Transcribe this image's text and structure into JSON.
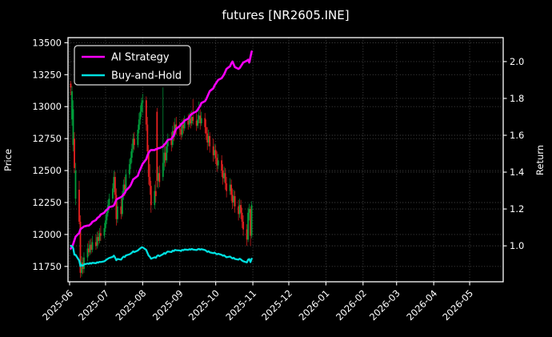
{
  "title": "futures [NR2605.INE]",
  "legend": {
    "items": [
      {
        "label": "AI Strategy",
        "color": "#fb00fb"
      },
      {
        "label": "Buy-and-Hold",
        "color": "#00e0e0"
      }
    ]
  },
  "axes": {
    "price_label": "Price",
    "return_label": "Return",
    "price_ticks": [
      13500,
      13250,
      13000,
      12750,
      12500,
      12250,
      12000,
      11750
    ],
    "return_ticks": [
      2.0,
      1.8,
      1.6,
      1.4,
      1.2,
      1.0
    ],
    "x_ticks": [
      "2025-06",
      "2025-07",
      "2025-08",
      "2025-09",
      "2025-10",
      "2025-11",
      "2025-12",
      "2026-01",
      "2026-02",
      "2026-03",
      "2026-04",
      "2026-05"
    ],
    "price_range": [
      11630,
      13540
    ],
    "return_range": [
      0.805,
      2.13
    ],
    "grid_color": "#5a5a5a",
    "spine_color": "#ffffff",
    "text_color": "#ffffff",
    "background": "#000000"
  },
  "chart_data": {
    "type": "candlestick+line",
    "title": "futures [NR2605.INE]",
    "ylabel_left": "Price",
    "ylabel_right": "Return",
    "up_color": "#00a03c",
    "down_color": "#e82020",
    "candles_format": [
      "date",
      "open",
      "high",
      "low",
      "close"
    ],
    "candles": [
      [
        "2025-06-02",
        13180,
        13200,
        13090,
        13150
      ],
      [
        "2025-06-03",
        12900,
        13160,
        12850,
        13120
      ],
      [
        "2025-06-04",
        12700,
        13050,
        12650,
        12980
      ],
      [
        "2025-06-05",
        12750,
        12800,
        12480,
        12520
      ],
      [
        "2025-06-06",
        12280,
        12560,
        12230,
        12500
      ],
      [
        "2025-06-09",
        12350,
        12420,
        12080,
        12100
      ],
      [
        "2025-06-10",
        12100,
        12150,
        11660,
        11700
      ],
      [
        "2025-06-11",
        11700,
        11830,
        11670,
        11780
      ],
      [
        "2025-06-12",
        11780,
        11820,
        11690,
        11730
      ],
      [
        "2025-06-13",
        11730,
        11860,
        11700,
        11820
      ],
      [
        "2025-06-16",
        11820,
        11930,
        11790,
        11890
      ],
      [
        "2025-06-17",
        11890,
        11950,
        11830,
        11860
      ],
      [
        "2025-06-18",
        11860,
        11960,
        11840,
        11920
      ],
      [
        "2025-06-19",
        11920,
        11970,
        11850,
        11880
      ],
      [
        "2025-06-20",
        11880,
        11990,
        11860,
        11940
      ],
      [
        "2025-06-23",
        11940,
        12000,
        11880,
        11910
      ],
      [
        "2025-06-24",
        11910,
        12020,
        11890,
        11980
      ],
      [
        "2025-06-25",
        11980,
        12030,
        11920,
        11950
      ],
      [
        "2025-06-26",
        11950,
        12050,
        11930,
        12010
      ],
      [
        "2025-06-27",
        12010,
        12070,
        11950,
        11990
      ],
      [
        "2025-06-30",
        11990,
        12090,
        11970,
        12050
      ],
      [
        "2025-07-01",
        12050,
        12150,
        12020,
        12110
      ],
      [
        "2025-07-02",
        12110,
        12210,
        12080,
        12170
      ],
      [
        "2025-07-03",
        12170,
        12270,
        12140,
        12230
      ],
      [
        "2025-07-04",
        12230,
        12320,
        12190,
        12280
      ],
      [
        "2025-07-07",
        12280,
        12400,
        12250,
        12360
      ],
      [
        "2025-07-08",
        12360,
        12500,
        12330,
        12450
      ],
      [
        "2025-07-09",
        12450,
        12490,
        12270,
        12310
      ],
      [
        "2025-07-10",
        12310,
        12360,
        12070,
        12120
      ],
      [
        "2025-07-11",
        12120,
        12260,
        12090,
        12220
      ],
      [
        "2025-07-14",
        12220,
        12280,
        12120,
        12160
      ],
      [
        "2025-07-15",
        12160,
        12340,
        12140,
        12300
      ],
      [
        "2025-07-16",
        12300,
        12430,
        12270,
        12390
      ],
      [
        "2025-07-17",
        12390,
        12450,
        12300,
        12350
      ],
      [
        "2025-07-18",
        12350,
        12510,
        12330,
        12470
      ],
      [
        "2025-07-21",
        12470,
        12590,
        12440,
        12550
      ],
      [
        "2025-07-22",
        12550,
        12650,
        12510,
        12600
      ],
      [
        "2025-07-23",
        12600,
        12710,
        12560,
        12670
      ],
      [
        "2025-07-24",
        12670,
        12790,
        12640,
        12750
      ],
      [
        "2025-07-25",
        12750,
        12800,
        12660,
        12700
      ],
      [
        "2025-07-28",
        12700,
        12860,
        12680,
        12820
      ],
      [
        "2025-07-29",
        12820,
        12950,
        12790,
        12900
      ],
      [
        "2025-07-30",
        12900,
        13010,
        12860,
        12960
      ],
      [
        "2025-07-31",
        12960,
        13070,
        12920,
        13030
      ],
      [
        "2025-08-01",
        13030,
        13100,
        12950,
        13050
      ],
      [
        "2025-08-04",
        13050,
        13080,
        12810,
        12860
      ],
      [
        "2025-08-05",
        12860,
        12920,
        12590,
        12650
      ],
      [
        "2025-08-06",
        12650,
        12700,
        12390,
        12450
      ],
      [
        "2025-08-07",
        12450,
        12550,
        12310,
        12380
      ],
      [
        "2025-08-08",
        12380,
        12420,
        12170,
        12230
      ],
      [
        "2025-08-11",
        12230,
        12390,
        12200,
        12340
      ],
      [
        "2025-08-12",
        12340,
        12420,
        12250,
        12300
      ],
      [
        "2025-08-13",
        12960,
        12990,
        12370,
        12420
      ],
      [
        "2025-08-14",
        12420,
        12530,
        12360,
        12480
      ],
      [
        "2025-08-15",
        12480,
        12540,
        12370,
        12410
      ],
      [
        "2025-08-18",
        12450,
        13150,
        12420,
        12560
      ],
      [
        "2025-08-19",
        12560,
        12690,
        12500,
        12640
      ],
      [
        "2025-08-20",
        12640,
        12700,
        12530,
        12580
      ],
      [
        "2025-08-21",
        12580,
        12730,
        12560,
        12690
      ],
      [
        "2025-08-22",
        12690,
        12790,
        12640,
        12740
      ],
      [
        "2025-08-25",
        12740,
        12800,
        12650,
        12700
      ],
      [
        "2025-08-26",
        12700,
        12850,
        12680,
        12810
      ],
      [
        "2025-08-27",
        12810,
        12880,
        12730,
        12780
      ],
      [
        "2025-08-28",
        12780,
        12910,
        12760,
        12860
      ],
      [
        "2025-08-29",
        12860,
        12920,
        12780,
        12830
      ],
      [
        "2025-09-01",
        12830,
        12880,
        12770,
        12820
      ],
      [
        "2025-09-02",
        12820,
        12870,
        12740,
        12780
      ],
      [
        "2025-09-03",
        12780,
        12900,
        12760,
        12860
      ],
      [
        "2025-09-04",
        12860,
        12910,
        12790,
        12830
      ],
      [
        "2025-09-05",
        12830,
        12930,
        12810,
        12890
      ],
      [
        "2025-09-08",
        12890,
        12940,
        12820,
        12860
      ],
      [
        "2025-09-09",
        12860,
        12950,
        12840,
        12910
      ],
      [
        "2025-09-10",
        12910,
        12960,
        12830,
        12870
      ],
      [
        "2025-09-11",
        12870,
        12970,
        12850,
        12920
      ],
      [
        "2025-09-12",
        12920,
        13060,
        12860,
        12890
      ],
      [
        "2025-09-15",
        12890,
        12950,
        12810,
        12850
      ],
      [
        "2025-09-16",
        12850,
        12940,
        12830,
        12900
      ],
      [
        "2025-09-17",
        12900,
        13040,
        12870,
        12930
      ],
      [
        "2025-09-18",
        12930,
        12980,
        12820,
        12870
      ],
      [
        "2025-09-19",
        12870,
        12960,
        12850,
        12910
      ],
      [
        "2025-09-22",
        12910,
        12950,
        12790,
        12840
      ],
      [
        "2025-09-23",
        12840,
        12900,
        12740,
        12790
      ],
      [
        "2025-09-24",
        12790,
        12840,
        12660,
        12720
      ],
      [
        "2025-09-25",
        12720,
        12820,
        12690,
        12770
      ],
      [
        "2025-09-26",
        12770,
        12800,
        12640,
        12690
      ],
      [
        "2025-09-29",
        12690,
        12750,
        12570,
        12620
      ],
      [
        "2025-09-30",
        12620,
        12710,
        12590,
        12660
      ],
      [
        "2025-10-01",
        12660,
        12700,
        12550,
        12600
      ],
      [
        "2025-10-02",
        12600,
        12650,
        12490,
        12540
      ],
      [
        "2025-10-03",
        12540,
        12630,
        12510,
        12580
      ],
      [
        "2025-10-06",
        12580,
        12620,
        12450,
        12500
      ],
      [
        "2025-10-07",
        12500,
        12550,
        12390,
        12440
      ],
      [
        "2025-10-08",
        12440,
        12530,
        12410,
        12480
      ],
      [
        "2025-10-09",
        12480,
        12520,
        12350,
        12400
      ],
      [
        "2025-10-10",
        12400,
        12450,
        12290,
        12340
      ],
      [
        "2025-10-13",
        12340,
        12440,
        12310,
        12390
      ],
      [
        "2025-10-14",
        12390,
        12430,
        12260,
        12310
      ],
      [
        "2025-10-15",
        12310,
        12360,
        12200,
        12250
      ],
      [
        "2025-10-16",
        12250,
        12350,
        12220,
        12300
      ],
      [
        "2025-10-17",
        12300,
        12340,
        12170,
        12220
      ],
      [
        "2025-10-20",
        12220,
        12270,
        12110,
        12160
      ],
      [
        "2025-10-21",
        12160,
        12280,
        12130,
        12230
      ],
      [
        "2025-10-22",
        12230,
        12270,
        12120,
        12170
      ],
      [
        "2025-10-23",
        12170,
        12210,
        12050,
        12100
      ],
      [
        "2025-10-24",
        12100,
        12150,
        11990,
        12040
      ],
      [
        "2025-10-27",
        12040,
        12080,
        11910,
        11960
      ],
      [
        "2025-10-28",
        11960,
        12210,
        11940,
        12170
      ],
      [
        "2025-10-29",
        12170,
        12240,
        12110,
        12200
      ],
      [
        "2025-10-30",
        12200,
        12220,
        11910,
        11990
      ],
      [
        "2025-10-31",
        11990,
        12260,
        11970,
        12230
      ]
    ],
    "series": [
      {
        "name": "AI Strategy",
        "axis": "return",
        "color": "#fb00fb",
        "values": [
          0.985,
          0.995,
          1.01,
          1.03,
          1.05,
          1.07,
          1.09,
          1.095,
          1.1,
          1.105,
          1.11,
          1.11,
          1.115,
          1.12,
          1.13,
          1.14,
          1.15,
          1.155,
          1.16,
          1.17,
          1.18,
          1.19,
          1.195,
          1.2,
          1.21,
          1.215,
          1.22,
          1.235,
          1.25,
          1.255,
          1.265,
          1.27,
          1.28,
          1.285,
          1.3,
          1.32,
          1.33,
          1.345,
          1.36,
          1.365,
          1.38,
          1.4,
          1.415,
          1.43,
          1.445,
          1.47,
          1.49,
          1.505,
          1.515,
          1.52,
          1.52,
          1.525,
          1.525,
          1.53,
          1.53,
          1.54,
          1.55,
          1.555,
          1.565,
          1.575,
          1.58,
          1.59,
          1.6,
          1.62,
          1.635,
          1.65,
          1.66,
          1.665,
          1.67,
          1.68,
          1.69,
          1.7,
          1.71,
          1.715,
          1.72,
          1.73,
          1.74,
          1.75,
          1.76,
          1.775,
          1.785,
          1.795,
          1.81,
          1.825,
          1.84,
          1.855,
          1.87,
          1.88,
          1.89,
          1.9,
          1.91,
          1.92,
          1.93,
          1.945,
          1.96,
          1.975,
          1.99,
          2.0,
          1.985,
          1.97,
          1.96,
          1.965,
          1.975,
          1.985,
          1.995,
          2.005,
          2.01,
          1.995,
          2.025,
          2.055
        ]
      },
      {
        "name": "Buy-and-Hold",
        "axis": "return",
        "color": "#00e0e0",
        "values": [
          1.0,
          0.998,
          0.987,
          0.952,
          0.951,
          0.92,
          0.89,
          0.896,
          0.892,
          0.899,
          0.904,
          0.902,
          0.907,
          0.903,
          0.908,
          0.906,
          0.911,
          0.909,
          0.913,
          0.912,
          0.916,
          0.921,
          0.926,
          0.93,
          0.934,
          0.94,
          0.947,
          0.936,
          0.922,
          0.929,
          0.925,
          0.935,
          0.942,
          0.939,
          0.948,
          0.954,
          0.958,
          0.963,
          0.97,
          0.966,
          0.975,
          0.981,
          0.986,
          0.991,
          0.992,
          0.978,
          0.962,
          0.947,
          0.941,
          0.93,
          0.938,
          0.935,
          0.945,
          0.949,
          0.944,
          0.955,
          0.961,
          0.957,
          0.965,
          0.969,
          0.966,
          0.974,
          0.972,
          0.978,
          0.976,
          0.975,
          0.972,
          0.978,
          0.976,
          0.98,
          0.978,
          0.982,
          0.979,
          0.983,
          0.98,
          0.977,
          0.981,
          0.983,
          0.979,
          0.982,
          0.977,
          0.973,
          0.967,
          0.971,
          0.965,
          0.96,
          0.963,
          0.958,
          0.954,
          0.957,
          0.951,
          0.946,
          0.949,
          0.943,
          0.938,
          0.942,
          0.936,
          0.932,
          0.935,
          0.929,
          0.925,
          0.93,
          0.926,
          0.92,
          0.916,
          0.91,
          0.925,
          0.928,
          0.912,
          0.93
        ]
      }
    ]
  }
}
